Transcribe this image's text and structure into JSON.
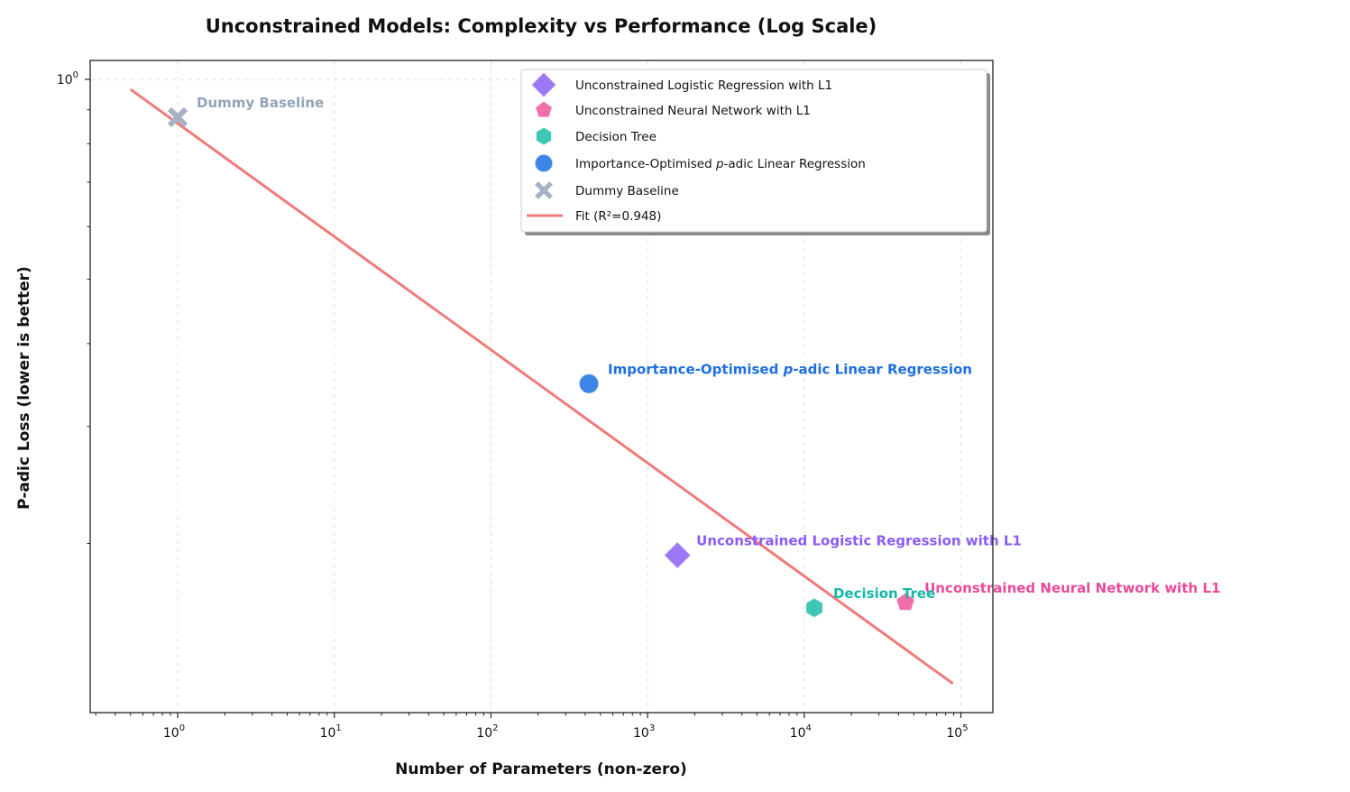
{
  "chart_data": {
    "type": "scatter",
    "title": "Unconstrained Models: Complexity vs Performance (Log Scale)",
    "xlabel": "Number of Parameters (non-zero)",
    "ylabel": "P-adic Loss (lower is better)",
    "xscale": "log",
    "yscale": "log",
    "xlim": [
      0.28,
      160000
    ],
    "ylim": [
      0.111,
      1.068
    ],
    "grid": true,
    "legend_position": "top-right",
    "x_ticks": [
      {
        "value": 1,
        "base": "10",
        "exp": "0"
      },
      {
        "value": 10,
        "base": "10",
        "exp": "1"
      },
      {
        "value": 100,
        "base": "10",
        "exp": "2"
      },
      {
        "value": 1000,
        "base": "10",
        "exp": "3"
      },
      {
        "value": 10000,
        "base": "10",
        "exp": "4"
      },
      {
        "value": 100000,
        "base": "10",
        "exp": "5"
      }
    ],
    "y_ticks": [
      {
        "value": 1,
        "base": "10",
        "exp": "0"
      }
    ],
    "y_minor_ticks": [
      0.9,
      0.8,
      0.7,
      0.6,
      0.5,
      0.4,
      0.3,
      0.2
    ],
    "series": [
      {
        "name": "Unconstrained Logistic Regression with L1",
        "marker": "diamond",
        "color": "#9d78f4",
        "label_color": "#8b5cf6",
        "x": 1550,
        "y": 0.192
      },
      {
        "name": "Unconstrained Neural Network with L1",
        "marker": "pentagon",
        "color": "#f06fab",
        "label_color": "#ec4899",
        "x": 44300,
        "y": 0.163
      },
      {
        "name": "Decision Tree",
        "marker": "hexagon",
        "color": "#40c6b6",
        "label_color": "#14b8a6",
        "x": 11600,
        "y": 0.16
      },
      {
        "name": "Importance-Optimised p-adic Linear Regression",
        "name_parts": [
          "Importance-Optimised ",
          "p",
          "-adic Linear Regression"
        ],
        "marker": "circle",
        "color": "#3b86e6",
        "label_color": "#1e6fe0",
        "x": 422,
        "y": 0.348
      },
      {
        "name": "Dummy Baseline",
        "marker": "x",
        "color": "#a7b1c4",
        "label_color": "#94a3b8",
        "x": 1,
        "y": 0.877
      }
    ],
    "fit": {
      "name": "Fit (R²=0.948)",
      "color": "#f07b78",
      "r_squared": 0.948,
      "x": [
        0.5,
        89000
      ],
      "y": [
        0.966,
        0.123
      ]
    }
  }
}
